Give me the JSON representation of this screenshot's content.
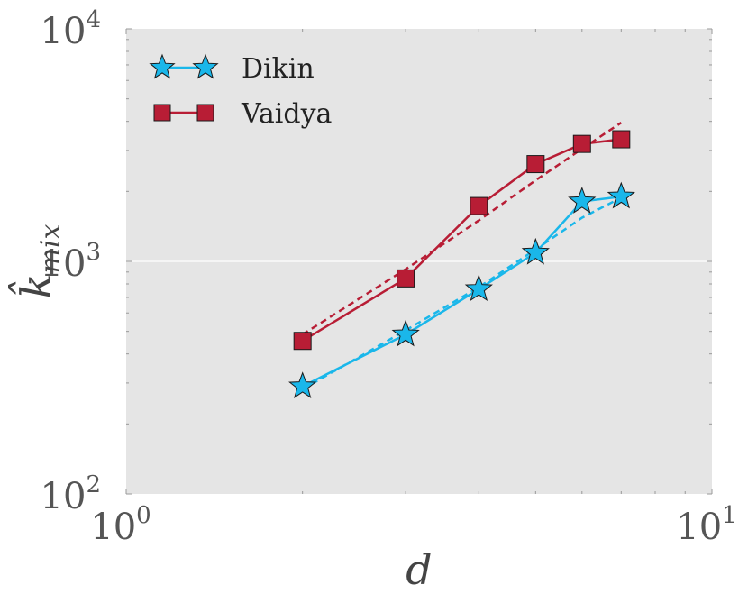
{
  "chart_data": {
    "type": "line",
    "x_scale": "log",
    "y_scale": "log",
    "xlim": [
      1,
      10
    ],
    "ylim": [
      100,
      10000
    ],
    "xlabel": "d",
    "ylabel": "k̂",
    "ylabel_subscript": "mix",
    "x_ticks": [
      {
        "value": 1,
        "base": "10",
        "exp": "0"
      },
      {
        "value": 10,
        "base": "10",
        "exp": "1"
      }
    ],
    "y_ticks": [
      {
        "value": 100,
        "base": "10",
        "exp": "2"
      },
      {
        "value": 1000,
        "base": "10",
        "exp": "3"
      },
      {
        "value": 10000,
        "base": "10",
        "exp": "4"
      }
    ],
    "grid": true,
    "background": "#e5e5e5",
    "legend_position": "top-left",
    "series": [
      {
        "name": "Dikin",
        "marker": "star",
        "color": "#1ab7ea",
        "x": [
          2,
          3,
          4,
          5,
          6,
          7
        ],
        "y": [
          290,
          485,
          760,
          1090,
          1810,
          1900
        ],
        "fit": {
          "x": [
            2,
            3,
            4,
            5,
            6,
            7
          ],
          "y": [
            282,
            505,
            775,
            1125,
            1540,
            1880
          ]
        }
      },
      {
        "name": "Vaidya",
        "marker": "square",
        "color": "#b81d35",
        "x": [
          2,
          3,
          4,
          5,
          6,
          7
        ],
        "y": [
          455,
          845,
          1730,
          2620,
          3200,
          3350
        ],
        "fit": {
          "x": [
            2,
            3,
            4,
            5,
            6,
            7
          ],
          "y": [
            485,
            925,
            1500,
            2230,
            3050,
            3950
          ]
        }
      }
    ]
  }
}
